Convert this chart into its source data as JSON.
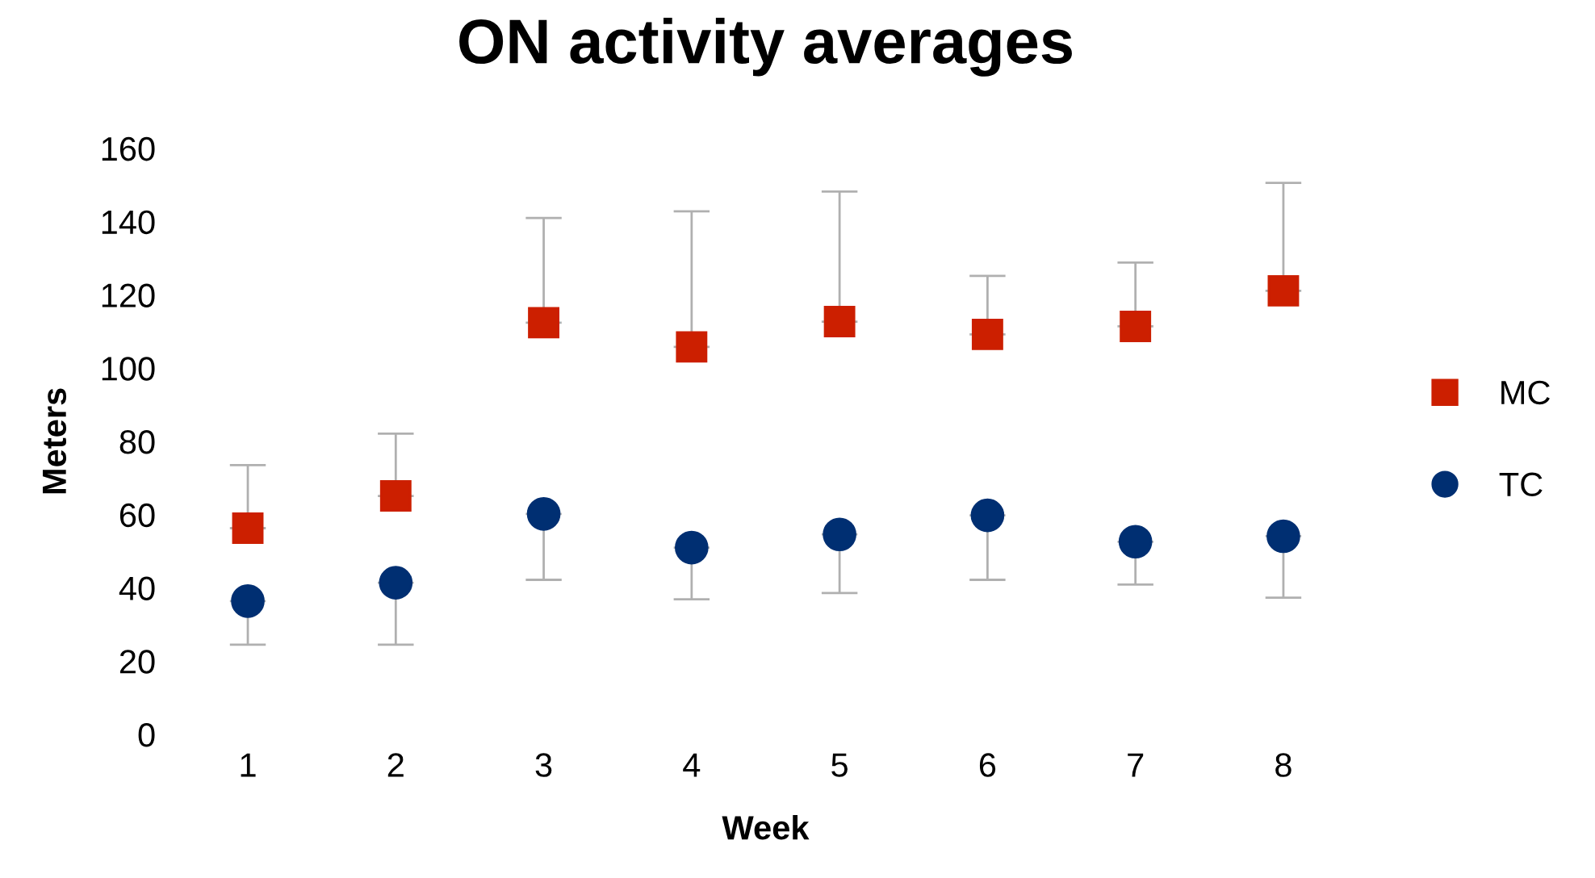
{
  "chart_data": {
    "type": "scatter",
    "title": "ON activity averages",
    "xlabel": "Week",
    "ylabel": "Meters",
    "categories": [
      "1",
      "2",
      "3",
      "4",
      "5",
      "6",
      "7",
      "8"
    ],
    "series": [
      {
        "name": "MC",
        "color": "#cc1f00",
        "marker": "square",
        "values": [
          56.3,
          65.1,
          112.4,
          105.8,
          112.7,
          109.2,
          111.4,
          121.1
        ],
        "errors": [
          [
            56.3,
            73.5
          ],
          [
            65.1,
            82.1
          ],
          [
            112.4,
            141.0
          ],
          [
            105.8,
            142.8
          ],
          [
            112.7,
            148.2
          ],
          [
            109.2,
            125.2
          ],
          [
            111.4,
            128.8
          ],
          [
            121.1,
            150.6
          ]
        ]
      },
      {
        "name": "TC",
        "color": "#002f72",
        "marker": "circle",
        "values": [
          36.4,
          41.4,
          60.2,
          51.0,
          54.6,
          59.8,
          52.6,
          54.1
        ],
        "errors": [
          [
            24.5,
            36.4
          ],
          [
            24.5,
            41.4
          ],
          [
            42.2,
            60.2
          ],
          [
            36.9,
            51.0
          ],
          [
            38.6,
            54.6
          ],
          [
            42.2,
            59.8
          ],
          [
            40.9,
            52.6
          ],
          [
            37.3,
            54.1
          ]
        ]
      }
    ],
    "ylim": [
      0,
      160
    ],
    "yticks": [
      0,
      20,
      40,
      60,
      80,
      100,
      120,
      140,
      160
    ],
    "grid": false,
    "legend": "right"
  }
}
